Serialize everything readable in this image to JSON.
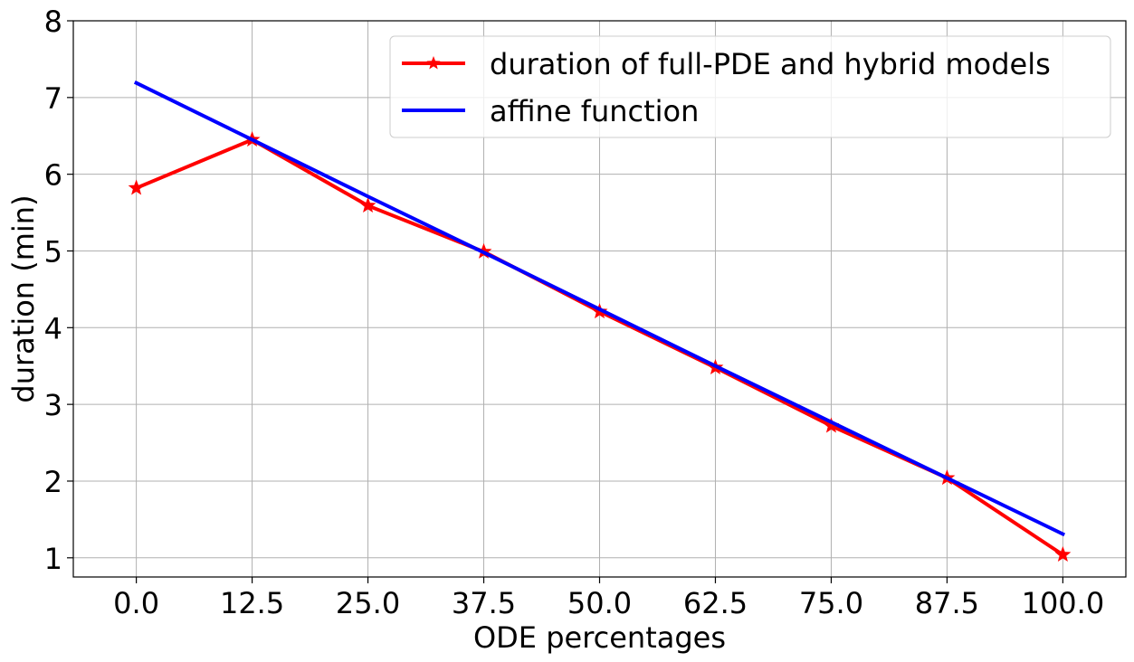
{
  "chart_data": {
    "type": "line",
    "title": "",
    "xlabel": "ODE percentages",
    "ylabel": "duration (min)",
    "x": [
      0.0,
      12.5,
      25.0,
      37.5,
      50.0,
      62.5,
      75.0,
      87.5,
      100.0
    ],
    "x_tick_labels": [
      "0.0",
      "12.5",
      "25.0",
      "37.5",
      "50.0",
      "62.5",
      "75.0",
      "87.5",
      "100.0"
    ],
    "y_ticks": [
      1,
      2,
      3,
      4,
      5,
      6,
      7,
      8
    ],
    "y_tick_labels": [
      "1",
      "2",
      "3",
      "4",
      "5",
      "6",
      "7",
      "8"
    ],
    "xlim": [
      -6.8,
      106.8
    ],
    "ylim": [
      0.75,
      8.0
    ],
    "grid": true,
    "legend_position": "top-right",
    "series": [
      {
        "name": "duration of full-PDE and hybrid models",
        "color": "#ff0000",
        "marker": "star",
        "values": [
          5.82,
          6.45,
          5.59,
          4.99,
          4.21,
          3.48,
          2.72,
          2.04,
          1.04
        ]
      },
      {
        "name": "affine function",
        "color": "#0000ff",
        "marker": "none",
        "values": [
          7.19,
          6.45,
          5.71,
          4.98,
          4.24,
          3.5,
          2.77,
          2.04,
          1.31
        ]
      }
    ]
  }
}
